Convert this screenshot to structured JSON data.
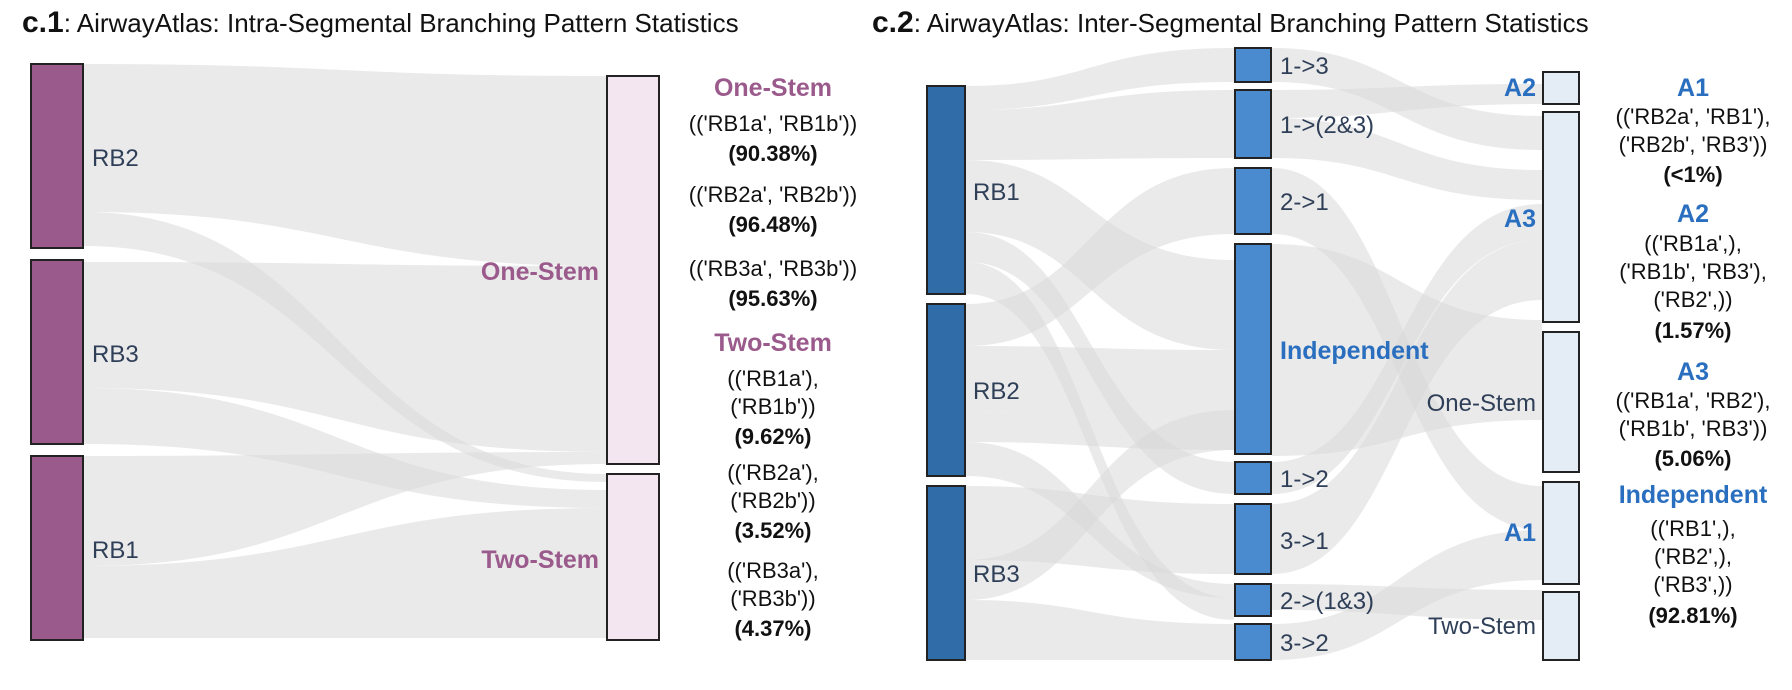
{
  "panel1": {
    "title_lead": "c.1",
    "title_rest": ": AirwayAtlas: Intra-Segmental Branching Pattern Statistics",
    "nodes_left": [
      "RB2",
      "RB3",
      "RB1"
    ],
    "nodes_right": [
      "One-Stem",
      "Two-Stem"
    ],
    "annotations": {
      "one_stem_head": "One-Stem",
      "one_stem_items": [
        {
          "line1": "(('RB1a', 'RB1b'))",
          "pct": "(90.38%)"
        },
        {
          "line1": "(('RB2a', 'RB2b'))",
          "pct": "(96.48%)"
        },
        {
          "line1": "(('RB3a', 'RB3b'))",
          "pct": "(95.63%)"
        }
      ],
      "two_stem_head": "Two-Stem",
      "two_stem_items": [
        {
          "line1": "(('RB1a'),",
          "line2": "('RB1b'))",
          "pct": "(9.62%)"
        },
        {
          "line1": "(('RB2a'),",
          "line2": "('RB2b'))",
          "pct": "(3.52%)"
        },
        {
          "line1": "(('RB3a'),",
          "line2": "('RB3b'))",
          "pct": "(4.37%)"
        }
      ]
    },
    "colors": {
      "left_node": "#9b5a8c",
      "right_node": "#f3e6f0",
      "label": "#9b5a8c"
    }
  },
  "panel2": {
    "title_lead": "c.2",
    "title_rest": ": AirwayAtlas: Inter-Segmental Branching Pattern Statistics",
    "nodes_left": [
      "RB1",
      "RB2",
      "RB3"
    ],
    "nodes_mid": [
      "1->3",
      "1->(2&3)",
      "2->1",
      "Independent",
      "1->2",
      "3->1",
      "2->(1&3)",
      "3->2"
    ],
    "nodes_right": [
      "A2",
      "A3",
      "One-Stem",
      "A1",
      "Two-Stem"
    ],
    "annotations": [
      {
        "head": "A1",
        "lines": [
          "(('RB2a', 'RB1'),",
          "('RB2b', 'RB3'))"
        ],
        "pct": "(<1%)"
      },
      {
        "head": "A2",
        "lines": [
          "(('RB1a',),",
          "('RB1b', 'RB3'),",
          "('RB2',))"
        ],
        "pct": "(1.57%)"
      },
      {
        "head": "A3",
        "lines": [
          "(('RB1a', 'RB2'),",
          "('RB1b', 'RB3'))"
        ],
        "pct": "(5.06%)"
      },
      {
        "head": "Independent",
        "lines": [
          "(('RB1',),",
          "('RB2',),",
          "('RB3',))"
        ],
        "pct": "(92.81%)"
      }
    ],
    "colors": {
      "left_node": "#2f6ca8",
      "mid_node": "#4a8bcf",
      "right_node": "#e4edf6",
      "label_blue": "#2a6fbf"
    }
  }
}
